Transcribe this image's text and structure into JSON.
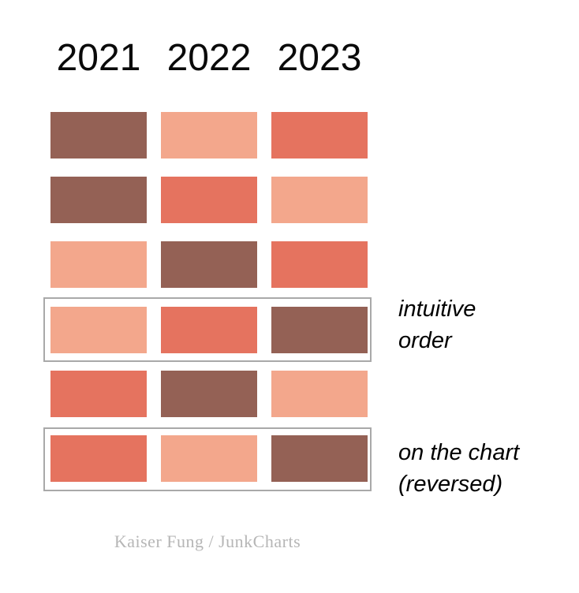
{
  "header": {
    "columns": [
      "2021",
      "2022",
      "2023"
    ]
  },
  "palette": {
    "brown": "#946155",
    "salmon": "#F3A78C",
    "coral": "#E5735F",
    "box_border": "#a9a9a9",
    "credit_gray": "#b6b6b6"
  },
  "grid": {
    "rows": [
      {
        "cells": [
          {
            "name": "brown",
            "hex": "#946155"
          },
          {
            "name": "salmon",
            "hex": "#F3A78C"
          },
          {
            "name": "coral",
            "hex": "#E5735F"
          }
        ]
      },
      {
        "cells": [
          {
            "name": "brown",
            "hex": "#946155"
          },
          {
            "name": "coral",
            "hex": "#E5735F"
          },
          {
            "name": "salmon",
            "hex": "#F3A78C"
          }
        ]
      },
      {
        "cells": [
          {
            "name": "salmon",
            "hex": "#F3A78C"
          },
          {
            "name": "brown",
            "hex": "#946155"
          },
          {
            "name": "coral",
            "hex": "#E5735F"
          }
        ]
      },
      {
        "cells": [
          {
            "name": "salmon",
            "hex": "#F3A78C"
          },
          {
            "name": "coral",
            "hex": "#E5735F"
          },
          {
            "name": "brown",
            "hex": "#946155"
          }
        ]
      },
      {
        "cells": [
          {
            "name": "coral",
            "hex": "#E5735F"
          },
          {
            "name": "brown",
            "hex": "#946155"
          },
          {
            "name": "salmon",
            "hex": "#F3A78C"
          }
        ]
      },
      {
        "cells": [
          {
            "name": "coral",
            "hex": "#E5735F"
          },
          {
            "name": "salmon",
            "hex": "#F3A78C"
          },
          {
            "name": "brown",
            "hex": "#946155"
          }
        ]
      }
    ]
  },
  "annotations": {
    "intuitive": {
      "line1": "intuitive",
      "line2": "order"
    },
    "reversed": {
      "line1": "on the chart",
      "line2": "(reversed)"
    }
  },
  "footer": {
    "credit": "Kaiser Fung / JunkCharts"
  }
}
